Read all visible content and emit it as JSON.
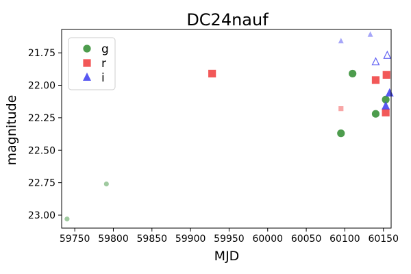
{
  "chart_data": {
    "type": "scatter",
    "title": "DC24nauf",
    "xlabel": "MJD",
    "ylabel": "magnitude",
    "xlim": [
      59733,
      60160
    ],
    "ylim": [
      23.1,
      21.57
    ],
    "y_inverted": true,
    "grid": false,
    "legend": {
      "placement": "top-left",
      "entries": [
        "g",
        "r",
        "i"
      ]
    },
    "x_ticks": [
      "59750",
      "59800",
      "59850",
      "59900",
      "59950",
      "60000",
      "60050",
      "60100",
      "60150"
    ],
    "y_ticks": [
      "21.75",
      "22.00",
      "22.25",
      "22.50",
      "22.75",
      "23.00"
    ],
    "series": [
      {
        "name": "g",
        "color": "#2e8b2e",
        "marker": "circle",
        "points": [
          {
            "x": 59740,
            "y": 23.03,
            "style": "faint-small"
          },
          {
            "x": 59791,
            "y": 22.76,
            "style": "faint-small"
          },
          {
            "x": 60095,
            "y": 22.37,
            "style": "solid"
          },
          {
            "x": 60110,
            "y": 21.91,
            "style": "solid"
          },
          {
            "x": 60140,
            "y": 22.22,
            "style": "solid"
          },
          {
            "x": 60153,
            "y": 22.11,
            "style": "solid"
          }
        ]
      },
      {
        "name": "r",
        "color": "#f03c3c",
        "marker": "square",
        "points": [
          {
            "x": 59928,
            "y": 21.91,
            "style": "solid"
          },
          {
            "x": 60095,
            "y": 22.18,
            "style": "faint-small"
          },
          {
            "x": 60140,
            "y": 21.96,
            "style": "solid"
          },
          {
            "x": 60154,
            "y": 21.92,
            "style": "solid"
          },
          {
            "x": 60153,
            "y": 22.21,
            "style": "solid"
          }
        ]
      },
      {
        "name": "i",
        "color": "#3c3cf0",
        "marker": "triangle",
        "points": [
          {
            "x": 60095,
            "y": 21.66,
            "style": "faint-small"
          },
          {
            "x": 60133,
            "y": 21.61,
            "style": "faint-small"
          },
          {
            "x": 60140,
            "y": 21.82,
            "style": "hollow"
          },
          {
            "x": 60155,
            "y": 21.77,
            "style": "hollow"
          },
          {
            "x": 60153,
            "y": 22.16,
            "style": "solid"
          },
          {
            "x": 60158,
            "y": 22.06,
            "style": "solid"
          }
        ]
      }
    ]
  }
}
